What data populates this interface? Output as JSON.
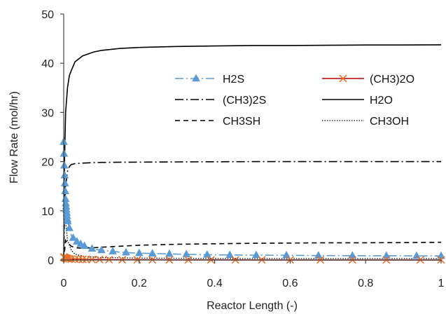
{
  "chart_data": {
    "type": "line",
    "title": "",
    "xlabel": "Reactor Length (-)",
    "ylabel": "Flow Rate (mol/hr)",
    "xlim": [
      0,
      1
    ],
    "ylim": [
      0,
      50
    ],
    "xticks": [
      "0",
      "0.2",
      "0.4",
      "0.6",
      "0.8",
      "1"
    ],
    "yticks": [
      "0",
      "10",
      "20",
      "30",
      "40",
      "50"
    ],
    "grid": false,
    "legend_position": "center-right",
    "series": [
      {
        "name": "H2S",
        "color": "#5b9bd5",
        "line": "dash-dot",
        "marker": "triangle",
        "x": [
          0,
          0.002,
          0.005,
          0.01,
          0.02,
          0.03,
          0.05,
          0.075,
          0.1,
          0.15,
          0.2,
          0.3,
          0.4,
          0.5,
          0.6,
          0.7,
          0.8,
          0.9,
          1.0
        ],
        "y": [
          24,
          18,
          12,
          8,
          5,
          4,
          3,
          2.3,
          2,
          1.6,
          1.4,
          1.2,
          1.05,
          1.0,
          0.95,
          0.9,
          0.87,
          0.85,
          0.83
        ]
      },
      {
        "name": "(CH3)2O",
        "color": "#e8702a",
        "line": "solid-red",
        "line_color": "#c00000",
        "marker": "x",
        "x": [
          0,
          0.005,
          0.01,
          0.02,
          0.04,
          0.06,
          0.08,
          0.12,
          0.16,
          0.2,
          0.3,
          0.4,
          0.5,
          0.6,
          0.7,
          0.8,
          0.9,
          1.0
        ],
        "y": [
          0.6,
          0.4,
          0.3,
          0.2,
          0.15,
          0.1,
          0.1,
          0.08,
          0.05,
          0.05,
          0.03,
          0.03,
          0.02,
          0.02,
          0.02,
          0.02,
          0.02,
          0.02
        ]
      },
      {
        "name": "(CH3)2S",
        "color": "#000000",
        "line": "dash-dot",
        "x": [
          0,
          0.002,
          0.005,
          0.01,
          0.015,
          0.02,
          0.03,
          0.05,
          0.08,
          0.1,
          0.2,
          0.3,
          0.5,
          0.7,
          0.85,
          1.0
        ],
        "y": [
          0,
          9,
          15,
          18,
          19,
          19.4,
          19.6,
          19.7,
          19.8,
          19.85,
          19.9,
          19.95,
          20,
          20,
          20,
          20
        ]
      },
      {
        "name": "H2O",
        "color": "#000000",
        "line": "solid",
        "x": [
          0,
          0.002,
          0.005,
          0.01,
          0.015,
          0.02,
          0.03,
          0.05,
          0.08,
          0.1,
          0.15,
          0.2,
          0.3,
          0.4,
          0.5,
          0.6,
          0.7,
          0.8,
          0.9,
          1.0
        ],
        "y": [
          0,
          20,
          30,
          35,
          37.5,
          38.5,
          40.3,
          41.5,
          42.3,
          42.6,
          43.0,
          43.2,
          43.4,
          43.5,
          43.6,
          43.6,
          43.65,
          43.7,
          43.7,
          43.75
        ]
      },
      {
        "name": "CH3SH",
        "color": "#000000",
        "line": "dashed",
        "x": [
          0,
          0.005,
          0.01,
          0.02,
          0.03,
          0.05,
          0.08,
          0.1,
          0.15,
          0.2,
          0.3,
          0.4,
          0.5,
          0.6,
          0.7,
          0.8,
          0.9,
          1.0
        ],
        "y": [
          0,
          4,
          3.5,
          2.8,
          2.5,
          2.4,
          2.5,
          2.6,
          2.8,
          3.0,
          3.2,
          3.3,
          3.4,
          3.45,
          3.5,
          3.5,
          3.55,
          3.6
        ]
      },
      {
        "name": "CH3OH",
        "color": "#000000",
        "line": "dotted",
        "x": [
          0,
          0.002,
          0.005,
          0.01,
          0.02,
          0.03,
          0.05,
          0.08,
          0.1,
          0.2,
          0.3,
          0.5,
          0.7,
          1.0
        ],
        "y": [
          25,
          15,
          8,
          4,
          2,
          1.2,
          0.8,
          0.6,
          0.5,
          0.4,
          0.35,
          0.3,
          0.3,
          0.3
        ]
      }
    ]
  }
}
